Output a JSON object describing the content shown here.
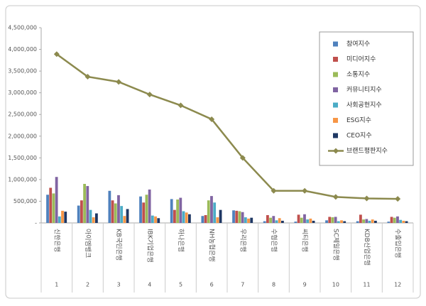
{
  "chart_data": {
    "type": "bar",
    "categories": [
      "신한은행",
      "아이엠뱅크",
      "KB국민은행",
      "IBK기업은행",
      "하나은행",
      "NH농협은행",
      "우리은행",
      "수협은행",
      "씨티은행",
      "SC제일은행",
      "KDB산업은행",
      "수출입은행"
    ],
    "category_numbers": [
      "1",
      "2",
      "3",
      "4",
      "5",
      "6",
      "7",
      "8",
      "9",
      "10",
      "11",
      "12"
    ],
    "series": [
      {
        "name": "참여지수",
        "color": "#4f81bd",
        "values": [
          650000,
          400000,
          740000,
          610000,
          550000,
          160000,
          290000,
          40000,
          30000,
          60000,
          40000,
          30000
        ]
      },
      {
        "name": "미디어지수",
        "color": "#c0504d",
        "values": [
          810000,
          520000,
          520000,
          470000,
          300000,
          180000,
          280000,
          180000,
          190000,
          140000,
          190000,
          140000
        ]
      },
      {
        "name": "소통지수",
        "color": "#9bbb59",
        "values": [
          680000,
          900000,
          450000,
          650000,
          540000,
          520000,
          270000,
          120000,
          120000,
          130000,
          80000,
          120000
        ]
      },
      {
        "name": "커뮤니티지수",
        "color": "#8064a2",
        "values": [
          1060000,
          850000,
          640000,
          770000,
          580000,
          620000,
          250000,
          160000,
          200000,
          140000,
          90000,
          150000
        ]
      },
      {
        "name": "사회공헌지수",
        "color": "#4bacc6",
        "values": [
          150000,
          300000,
          390000,
          170000,
          270000,
          470000,
          130000,
          60000,
          80000,
          40000,
          50000,
          70000
        ]
      },
      {
        "name": "ESG지수",
        "color": "#f79646",
        "values": [
          280000,
          130000,
          160000,
          150000,
          240000,
          130000,
          100000,
          110000,
          100000,
          60000,
          80000,
          50000
        ]
      },
      {
        "name": "CEO지수",
        "color": "#1f3864",
        "values": [
          260000,
          220000,
          320000,
          110000,
          200000,
          300000,
          120000,
          50000,
          50000,
          40000,
          50000,
          40000
        ]
      },
      {
        "name": "브랜드평판지수",
        "color": "#8c8a4e",
        "type": "line",
        "values": [
          3890000,
          3370000,
          3250000,
          2960000,
          2710000,
          2390000,
          1500000,
          740000,
          740000,
          600000,
          565000,
          555000
        ]
      }
    ],
    "ylim": [
      0,
      4500000
    ],
    "yticks": [
      {
        "value": 0,
        "label": "-"
      },
      {
        "value": 500000,
        "label": "500,000"
      },
      {
        "value": 1000000,
        "label": "1,000,000"
      },
      {
        "value": 1500000,
        "label": "1,500,000"
      },
      {
        "value": 2000000,
        "label": "2,000,000"
      },
      {
        "value": 2500000,
        "label": "2,500,000"
      },
      {
        "value": 3000000,
        "label": "3,000,000"
      },
      {
        "value": 3500000,
        "label": "3,500,000"
      },
      {
        "value": 4000000,
        "label": "4,000,000"
      },
      {
        "value": 4500000,
        "label": "4,500,000"
      }
    ],
    "grid": false,
    "legend": "upper right"
  }
}
